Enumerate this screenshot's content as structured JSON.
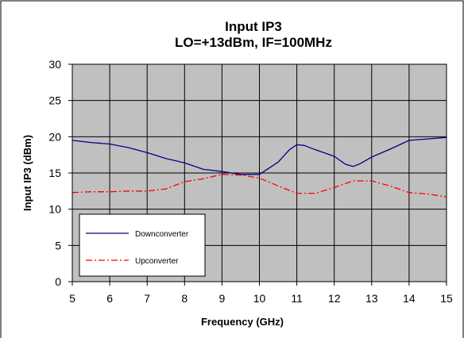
{
  "chart_data": {
    "type": "line",
    "title": [
      "Input IP3",
      "LO=+13dBm, IF=100MHz"
    ],
    "xlabel": "Frequency (GHz)",
    "ylabel": "Input IP3 (dBm)",
    "xlim": [
      5,
      15
    ],
    "ylim": [
      0,
      30
    ],
    "xticks": [
      5,
      6,
      7,
      8,
      9,
      10,
      11,
      12,
      13,
      14,
      15
    ],
    "yticks": [
      0,
      5,
      10,
      15,
      20,
      25,
      30
    ],
    "grid": true,
    "legend_position": "bottom-left",
    "series": [
      {
        "name": "Downconverter",
        "color": "#00008B",
        "style": "solid",
        "x": [
          5.0,
          5.5,
          6.0,
          6.5,
          7.0,
          7.5,
          8.0,
          8.5,
          9.0,
          9.5,
          10.0,
          10.5,
          10.8,
          11.0,
          11.2,
          11.5,
          12.0,
          12.3,
          12.5,
          12.7,
          13.0,
          13.5,
          14.0,
          14.5,
          15.0
        ],
        "y": [
          19.5,
          19.2,
          19.0,
          18.5,
          17.8,
          17.0,
          16.4,
          15.5,
          15.2,
          14.8,
          14.8,
          16.5,
          18.2,
          18.9,
          18.8,
          18.2,
          17.3,
          16.2,
          15.9,
          16.3,
          17.2,
          18.3,
          19.5,
          19.7,
          19.9
        ]
      },
      {
        "name": "Upconverter",
        "color": "#FF0000",
        "style": "dashdot",
        "x": [
          5.0,
          5.5,
          6.0,
          6.5,
          7.0,
          7.5,
          8.0,
          8.5,
          9.0,
          9.5,
          10.0,
          10.5,
          11.0,
          11.5,
          12.0,
          12.5,
          13.0,
          13.5,
          14.0,
          14.5,
          15.0
        ],
        "y": [
          12.3,
          12.4,
          12.4,
          12.5,
          12.5,
          12.8,
          13.8,
          14.2,
          14.8,
          14.7,
          14.3,
          13.2,
          12.2,
          12.2,
          13.0,
          13.9,
          13.9,
          13.2,
          12.3,
          12.1,
          11.7
        ]
      }
    ]
  }
}
